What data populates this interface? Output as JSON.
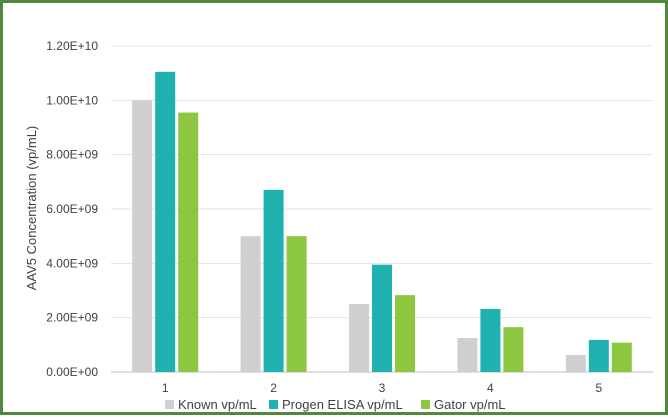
{
  "chart_data": {
    "type": "bar",
    "title": "",
    "xlabel": "",
    "ylabel": "AAV5 Concentration (vp/mL)",
    "categories": [
      "1",
      "2",
      "3",
      "4",
      "5"
    ],
    "ylim": [
      0,
      12000000000
    ],
    "yticks": [
      "0.00E+00",
      "2.00E+09",
      "4.00E+09",
      "6.00E+09",
      "8.00E+09",
      "1.00E+10",
      "1.20E+10"
    ],
    "grid": true,
    "legend_position": "bottom",
    "series": [
      {
        "name": "Known vp/mL",
        "color": "#d0cfcf",
        "values": [
          10000000000,
          5000000000,
          2500000000,
          1250000000,
          625000000
        ]
      },
      {
        "name": "Progen ELISA vp/mL",
        "color": "#1fb0b0",
        "values": [
          11050000000,
          6700000000,
          3950000000,
          2320000000,
          1180000000
        ]
      },
      {
        "name": "Gator vp/mL",
        "color": "#8dc63f",
        "values": [
          9550000000,
          5000000000,
          2830000000,
          1650000000,
          1080000000
        ]
      }
    ]
  }
}
